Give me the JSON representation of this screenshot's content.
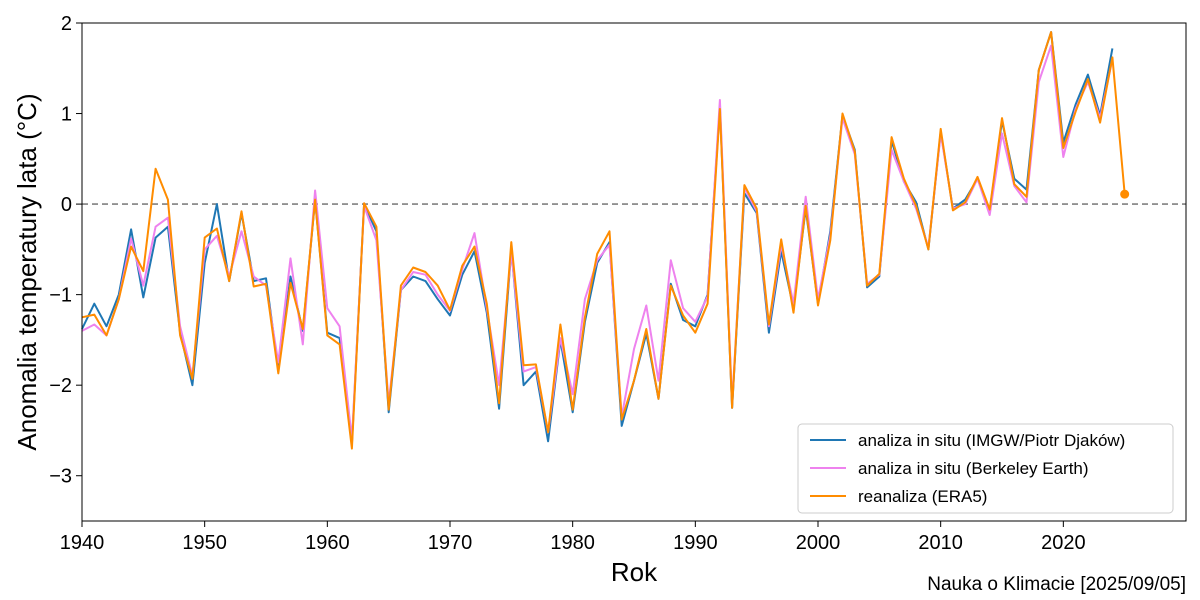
{
  "chart_data": {
    "type": "line",
    "xlabel": "Rok",
    "ylabel": "Anomalia temperatury lata (°C)",
    "xlim": [
      1940,
      2030
    ],
    "ylim": [
      -3.5,
      2
    ],
    "x_ticks": [
      1940,
      1950,
      1960,
      1970,
      1980,
      1990,
      2000,
      2010,
      2020
    ],
    "y_ticks": [
      -3,
      -2,
      -1,
      0,
      1,
      2
    ],
    "y_tick_labels": [
      "−3",
      "−2",
      "−1",
      "0",
      "1",
      "2"
    ],
    "reference_line": 0,
    "legend_position": "lower-right",
    "colors": {
      "imgw": "#1f77b4",
      "berkeley": "#ee82ee",
      "era5": "#ff8c00",
      "reference": "#808080"
    },
    "x": [
      1940,
      1941,
      1942,
      1943,
      1944,
      1945,
      1946,
      1947,
      1948,
      1949,
      1950,
      1951,
      1952,
      1953,
      1954,
      1955,
      1956,
      1957,
      1958,
      1959,
      1960,
      1961,
      1962,
      1963,
      1964,
      1965,
      1966,
      1967,
      1968,
      1969,
      1970,
      1971,
      1972,
      1973,
      1974,
      1975,
      1976,
      1977,
      1978,
      1979,
      1980,
      1981,
      1982,
      1983,
      1984,
      1985,
      1986,
      1987,
      1988,
      1989,
      1990,
      1991,
      1992,
      1993,
      1994,
      1995,
      1996,
      1997,
      1998,
      1999,
      2000,
      2001,
      2002,
      2003,
      2004,
      2005,
      2006,
      2007,
      2008,
      2009,
      2010,
      2011,
      2012,
      2013,
      2014,
      2015,
      2016,
      2017,
      2018,
      2019,
      2020,
      2021,
      2022,
      2023,
      2024,
      2025
    ],
    "series": [
      {
        "name": "analiza in situ (IMGW/Piotr Djaków)",
        "color": "#1f77b4",
        "values": [
          -1.38,
          -1.1,
          -1.35,
          -1.0,
          -0.28,
          -1.03,
          -0.37,
          -0.25,
          -1.42,
          -2.0,
          -0.65,
          0.0,
          -0.85,
          -0.1,
          -0.85,
          -0.82,
          -1.82,
          -0.8,
          -1.4,
          0.05,
          -1.42,
          -1.48,
          -2.65,
          0.0,
          -0.3,
          -2.3,
          -0.95,
          -0.8,
          -0.85,
          -1.05,
          -1.23,
          -0.78,
          -0.52,
          -1.2,
          -2.26,
          -0.5,
          -2.0,
          -1.85,
          -2.62,
          -1.5,
          -2.3,
          -1.3,
          -0.65,
          -0.42,
          -2.45,
          -1.95,
          -1.43,
          -2.15,
          -0.88,
          -1.28,
          -1.35,
          -1.0,
          1.08,
          -2.25,
          0.12,
          -0.1,
          -1.42,
          -0.52,
          -1.15,
          -0.05,
          -1.1,
          -0.3,
          0.98,
          0.6,
          -0.92,
          -0.8,
          0.7,
          0.25,
          0.02,
          -0.5,
          0.8,
          -0.05,
          0.05,
          0.28,
          -0.08,
          0.92,
          0.28,
          0.16,
          1.48,
          1.9,
          0.68,
          1.1,
          1.43,
          0.98,
          1.72,
          null
        ]
      },
      {
        "name": "analiza in situ (Berkeley Earth)",
        "color": "#ee82ee",
        "values": [
          -1.4,
          -1.33,
          -1.45,
          -1.05,
          -0.38,
          -0.9,
          -0.25,
          -0.15,
          -1.35,
          -1.9,
          -0.5,
          -0.35,
          -0.8,
          -0.3,
          -0.8,
          -0.9,
          -1.75,
          -0.6,
          -1.55,
          0.15,
          -1.15,
          -1.35,
          -2.6,
          -0.02,
          -0.4,
          -2.2,
          -0.95,
          -0.75,
          -0.78,
          -1.0,
          -1.18,
          -0.72,
          -0.32,
          -1.15,
          -2.0,
          -0.52,
          -1.85,
          -1.8,
          -2.52,
          -1.48,
          -2.1,
          -1.05,
          -0.62,
          -0.45,
          -2.35,
          -1.6,
          -1.12,
          -1.95,
          -0.62,
          -1.15,
          -1.3,
          -1.02,
          1.15,
          -2.2,
          0.18,
          -0.08,
          -1.35,
          -0.45,
          -1.1,
          0.08,
          -1.05,
          -0.35,
          0.95,
          0.55,
          -0.88,
          -0.78,
          0.6,
          0.25,
          -0.05,
          -0.48,
          0.78,
          -0.05,
          0.0,
          0.28,
          -0.12,
          0.78,
          0.2,
          0.02,
          1.35,
          1.75,
          0.52,
          1.05,
          1.35,
          0.95,
          1.6,
          null
        ]
      },
      {
        "name": "reanaliza (ERA5)",
        "color": "#ff8c00",
        "values": [
          -1.25,
          -1.22,
          -1.45,
          -1.05,
          -0.47,
          -0.74,
          0.39,
          0.05,
          -1.45,
          -1.93,
          -0.37,
          -0.27,
          -0.85,
          -0.08,
          -0.91,
          -0.88,
          -1.87,
          -0.87,
          -1.38,
          0.05,
          -1.45,
          -1.55,
          -2.7,
          0.01,
          -0.25,
          -2.27,
          -0.9,
          -0.7,
          -0.75,
          -0.9,
          -1.17,
          -0.68,
          -0.47,
          -1.1,
          -2.2,
          -0.42,
          -1.78,
          -1.77,
          -2.52,
          -1.33,
          -2.27,
          -1.25,
          -0.55,
          -0.3,
          -2.38,
          -1.95,
          -1.38,
          -2.15,
          -0.9,
          -1.23,
          -1.42,
          -1.1,
          1.05,
          -2.25,
          0.21,
          -0.05,
          -1.33,
          -0.39,
          -1.2,
          -0.02,
          -1.12,
          -0.4,
          1.0,
          0.58,
          -0.9,
          -0.77,
          0.74,
          0.28,
          -0.02,
          -0.5,
          0.83,
          -0.07,
          0.02,
          0.3,
          -0.06,
          0.95,
          0.22,
          0.08,
          1.48,
          1.9,
          0.62,
          1.02,
          1.38,
          0.9,
          1.62,
          0.11
        ]
      }
    ]
  },
  "footer": {
    "credit": "Nauka o Klimacie [2025/09/05]"
  }
}
